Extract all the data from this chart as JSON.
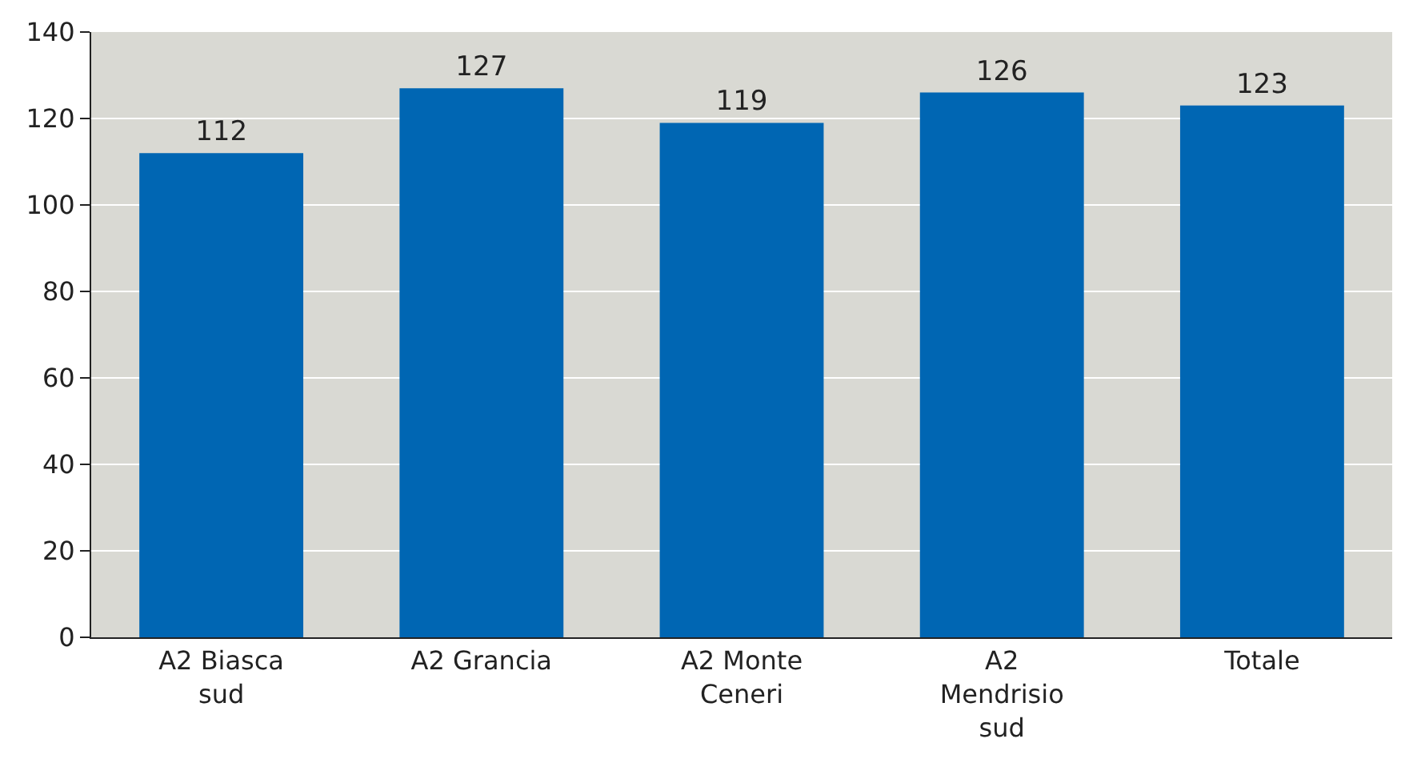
{
  "chart_data": {
    "type": "bar",
    "categories": [
      "A2 Biasca sud",
      "A2 Grancia",
      "A2 Monte Ceneri",
      "A2 Mendrisio sud",
      "Totale"
    ],
    "values": [
      112,
      127,
      119,
      126,
      123
    ],
    "color": "#0066b3",
    "ylim": [
      0,
      140
    ],
    "yticks": [
      0,
      20,
      40,
      60,
      80,
      100,
      120,
      140
    ],
    "grid": "y",
    "data_labels": true
  }
}
